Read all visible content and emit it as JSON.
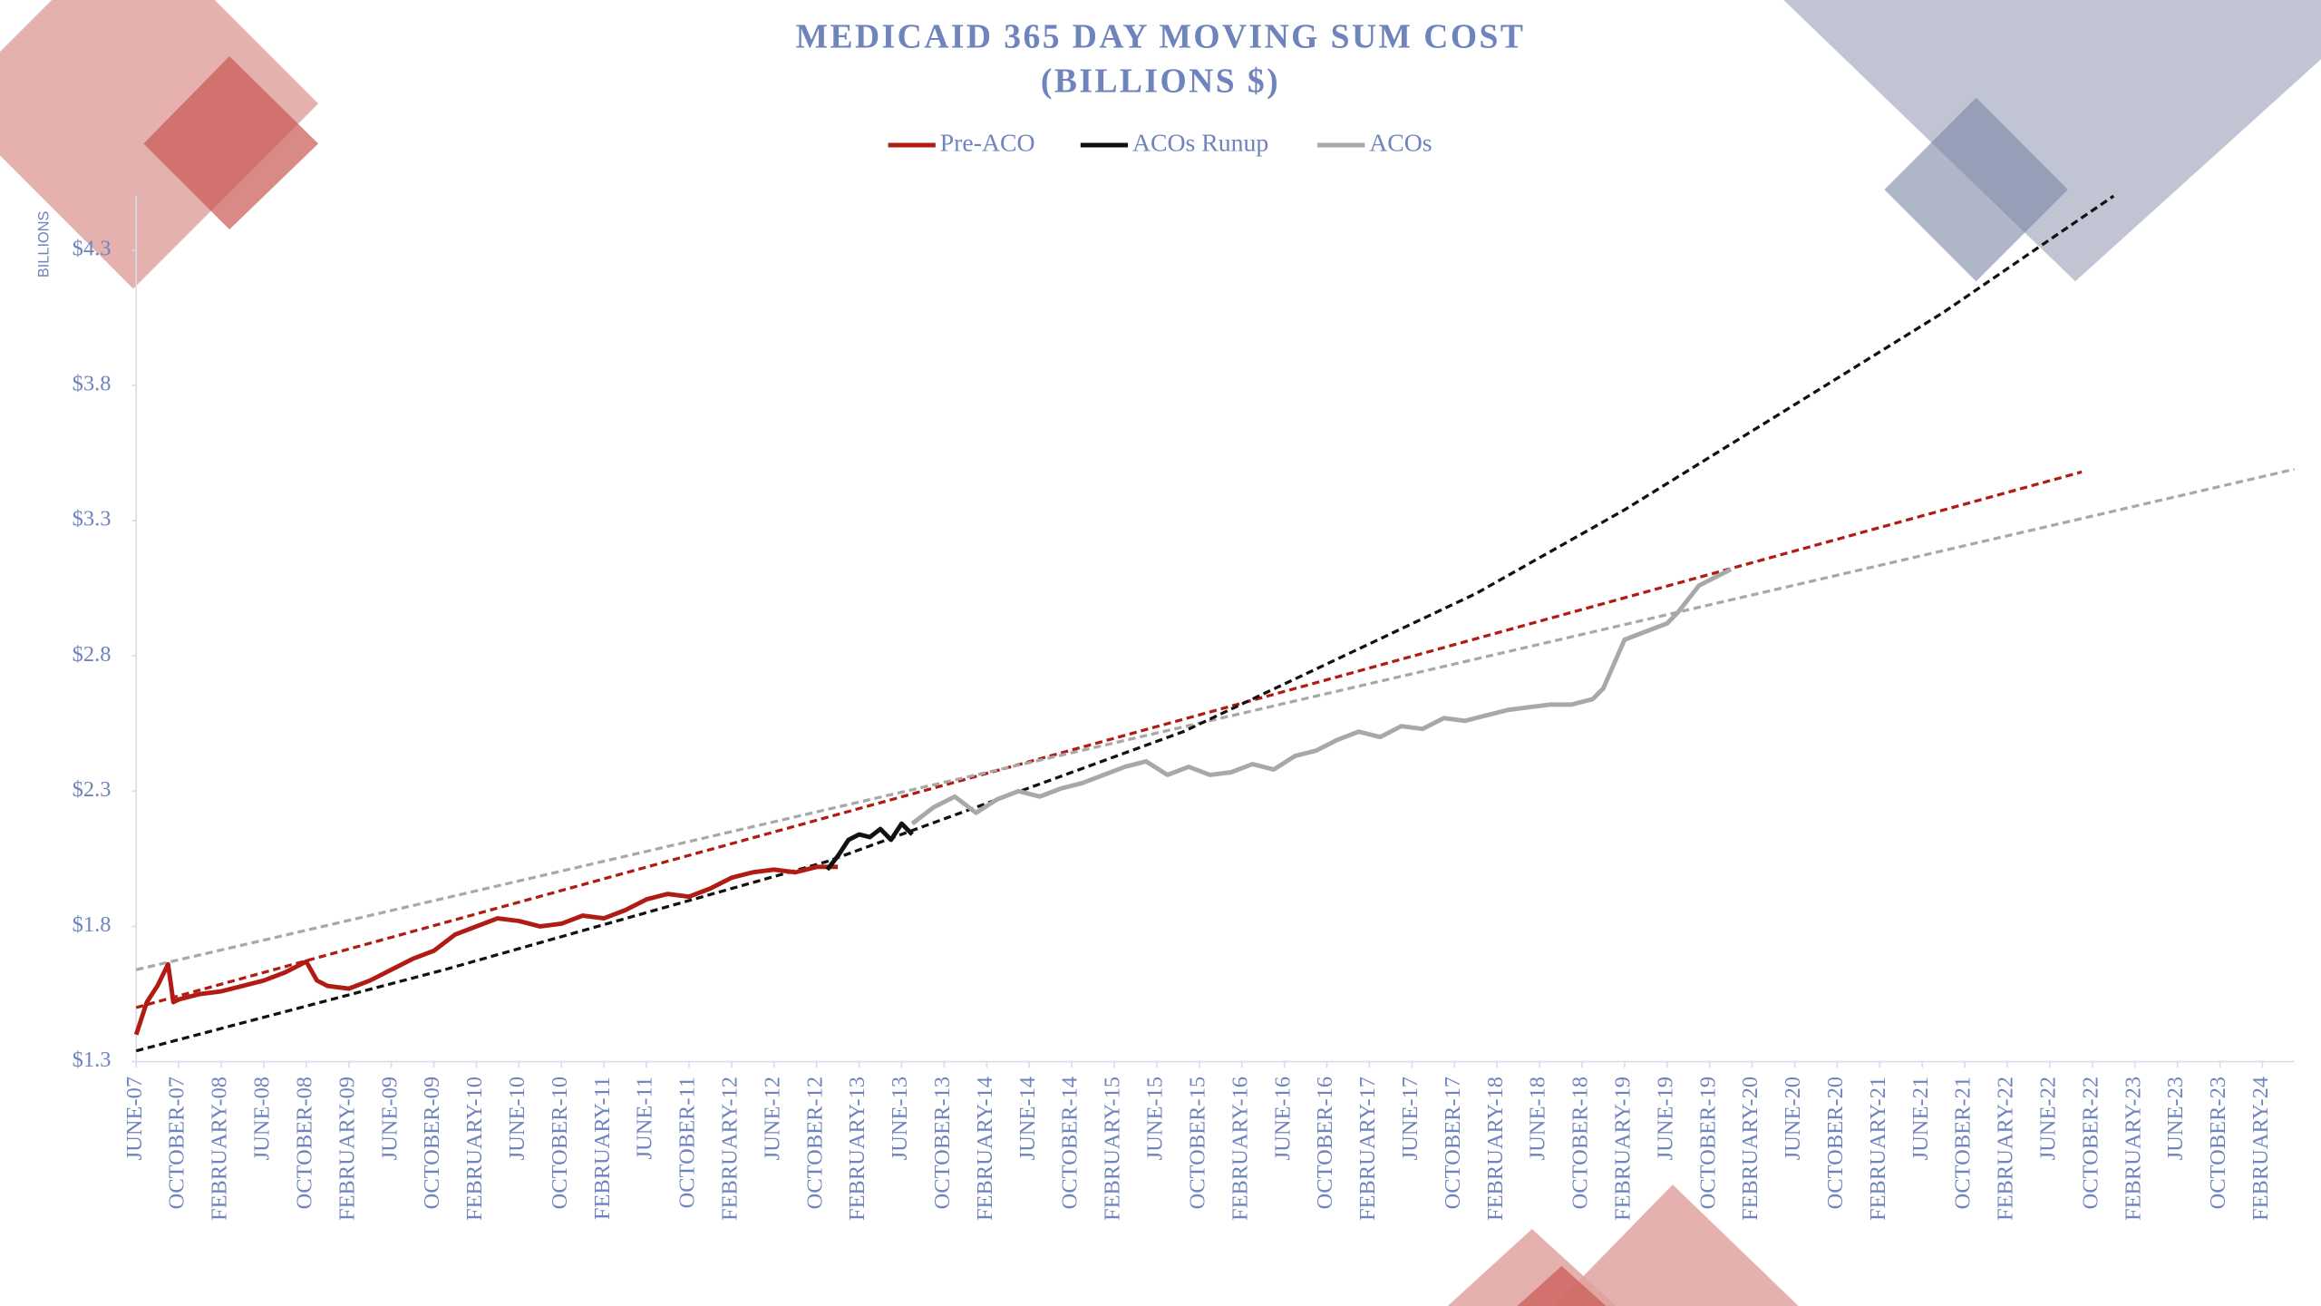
{
  "chart_data": {
    "type": "line",
    "title": "MEDICAID 365 DAY MOVING SUM COST",
    "subtitle": "(BILLIONS $)",
    "y_label": "BILLIONS",
    "xlim": [
      0,
      203
    ],
    "xticks": [
      {
        "value": 0,
        "label": "JUNE-07"
      },
      {
        "value": 4,
        "label": "OCTOBER-07"
      },
      {
        "value": 8,
        "label": "FEBRUARY-08"
      },
      {
        "value": 12,
        "label": "JUNE-08"
      },
      {
        "value": 16,
        "label": "OCTOBER-08"
      },
      {
        "value": 20,
        "label": "FEBRUARY-09"
      },
      {
        "value": 24,
        "label": "JUNE-09"
      },
      {
        "value": 28,
        "label": "OCTOBER-09"
      },
      {
        "value": 32,
        "label": "FEBRUARY-10"
      },
      {
        "value": 36,
        "label": "JUNE-10"
      },
      {
        "value": 40,
        "label": "OCTOBER-10"
      },
      {
        "value": 44,
        "label": "FEBRUARY-11"
      },
      {
        "value": 48,
        "label": "JUNE-11"
      },
      {
        "value": 52,
        "label": "OCTOBER-11"
      },
      {
        "value": 56,
        "label": "FEBRUARY-12"
      },
      {
        "value": 60,
        "label": "JUNE-12"
      },
      {
        "value": 64,
        "label": "OCTOBER-12"
      },
      {
        "value": 68,
        "label": "FEBRUARY-13"
      },
      {
        "value": 72,
        "label": "JUNE-13"
      },
      {
        "value": 76,
        "label": "OCTOBER-13"
      },
      {
        "value": 80,
        "label": "FEBRUARY-14"
      },
      {
        "value": 84,
        "label": "JUNE-14"
      },
      {
        "value": 88,
        "label": "OCTOBER-14"
      },
      {
        "value": 92,
        "label": "FEBRUARY-15"
      },
      {
        "value": 96,
        "label": "JUNE-15"
      },
      {
        "value": 100,
        "label": "OCTOBER-15"
      },
      {
        "value": 104,
        "label": "FEBRUARY-16"
      },
      {
        "value": 108,
        "label": "JUNE-16"
      },
      {
        "value": 112,
        "label": "OCTOBER-16"
      },
      {
        "value": 116,
        "label": "FEBRUARY-17"
      },
      {
        "value": 120,
        "label": "JUNE-17"
      },
      {
        "value": 124,
        "label": "OCTOBER-17"
      },
      {
        "value": 128,
        "label": "FEBRUARY-18"
      },
      {
        "value": 132,
        "label": "JUNE-18"
      },
      {
        "value": 136,
        "label": "OCTOBER-18"
      },
      {
        "value": 140,
        "label": "FEBRUARY-19"
      },
      {
        "value": 144,
        "label": "JUNE-19"
      },
      {
        "value": 148,
        "label": "OCTOBER-19"
      },
      {
        "value": 152,
        "label": "FEBRUARY-20"
      },
      {
        "value": 156,
        "label": "JUNE-20"
      },
      {
        "value": 160,
        "label": "OCTOBER-20"
      },
      {
        "value": 164,
        "label": "FEBRUARY-21"
      },
      {
        "value": 168,
        "label": "JUNE-21"
      },
      {
        "value": 172,
        "label": "OCTOBER-21"
      },
      {
        "value": 176,
        "label": "FEBRUARY-22"
      },
      {
        "value": 180,
        "label": "JUNE-22"
      },
      {
        "value": 184,
        "label": "OCTOBER-22"
      },
      {
        "value": 188,
        "label": "FEBRUARY-23"
      },
      {
        "value": 192,
        "label": "JUNE-23"
      },
      {
        "value": 196,
        "label": "OCTOBER-23"
      },
      {
        "value": 200,
        "label": "FEBRUARY-24"
      }
    ],
    "ylim": [
      1.3,
      4.5
    ],
    "yticks": [
      {
        "value": 1.3,
        "label": "$1.3"
      },
      {
        "value": 1.8,
        "label": "$1.8"
      },
      {
        "value": 2.3,
        "label": "$2.3"
      },
      {
        "value": 2.8,
        "label": "$2.8"
      },
      {
        "value": 3.3,
        "label": "$3.3"
      },
      {
        "value": 3.8,
        "label": "$3.8"
      },
      {
        "value": 4.3,
        "label": "$4.3"
      }
    ],
    "series": [
      {
        "name": "Pre-ACO",
        "color": "#b01c14",
        "x": [
          0,
          1,
          2,
          3,
          3.5,
          4,
          6,
          8,
          10,
          12,
          14,
          16,
          17,
          18,
          20,
          22,
          24,
          26,
          28,
          30,
          32,
          34,
          36,
          38,
          40,
          42,
          44,
          46,
          48,
          50,
          52,
          54,
          56,
          58,
          60,
          62,
          64,
          66
        ],
        "values": [
          1.4,
          1.52,
          1.58,
          1.66,
          1.52,
          1.53,
          1.55,
          1.56,
          1.58,
          1.6,
          1.63,
          1.67,
          1.6,
          1.58,
          1.57,
          1.6,
          1.64,
          1.68,
          1.71,
          1.77,
          1.8,
          1.83,
          1.82,
          1.8,
          1.81,
          1.84,
          1.83,
          1.86,
          1.9,
          1.92,
          1.91,
          1.94,
          1.98,
          2.0,
          2.01,
          2.0,
          2.02,
          2.02
        ]
      },
      {
        "name": "ACOs Runup",
        "color": "#111111",
        "x": [
          65,
          66,
          67,
          68,
          69,
          70,
          71,
          72,
          73
        ],
        "values": [
          2.01,
          2.06,
          2.12,
          2.14,
          2.13,
          2.16,
          2.12,
          2.18,
          2.14
        ]
      },
      {
        "name": "ACOs",
        "color": "#a8a8a8",
        "x": [
          73,
          75,
          77,
          79,
          81,
          83,
          85,
          87,
          89,
          91,
          93,
          95,
          97,
          99,
          101,
          103,
          105,
          107,
          109,
          111,
          113,
          115,
          117,
          119,
          121,
          123,
          125,
          127,
          129,
          131,
          133,
          135,
          137,
          138,
          140,
          142,
          144,
          145,
          147,
          149,
          150
        ],
        "values": [
          2.18,
          2.24,
          2.28,
          2.22,
          2.27,
          2.3,
          2.28,
          2.31,
          2.33,
          2.36,
          2.39,
          2.41,
          2.36,
          2.39,
          2.36,
          2.37,
          2.4,
          2.38,
          2.43,
          2.45,
          2.49,
          2.52,
          2.5,
          2.54,
          2.53,
          2.57,
          2.56,
          2.58,
          2.6,
          2.61,
          2.62,
          2.62,
          2.64,
          2.68,
          2.86,
          2.89,
          2.92,
          2.96,
          3.06,
          3.1,
          3.12
        ]
      }
    ],
    "trendlines": [
      {
        "color": "#b01c14",
        "x": [
          0,
          183
        ],
        "values": [
          1.5,
          3.48
        ]
      },
      {
        "color": "#a8a8a8",
        "x": [
          0,
          203
        ],
        "values": [
          1.64,
          3.49
        ]
      },
      {
        "color": "#111111",
        "x": [
          0,
          29,
          65,
          98.5,
          126,
          140,
          154,
          170,
          186
        ],
        "values": [
          1.34,
          1.64,
          2.04,
          2.52,
          3.03,
          3.34,
          3.68,
          4.07,
          4.5
        ]
      }
    ]
  }
}
